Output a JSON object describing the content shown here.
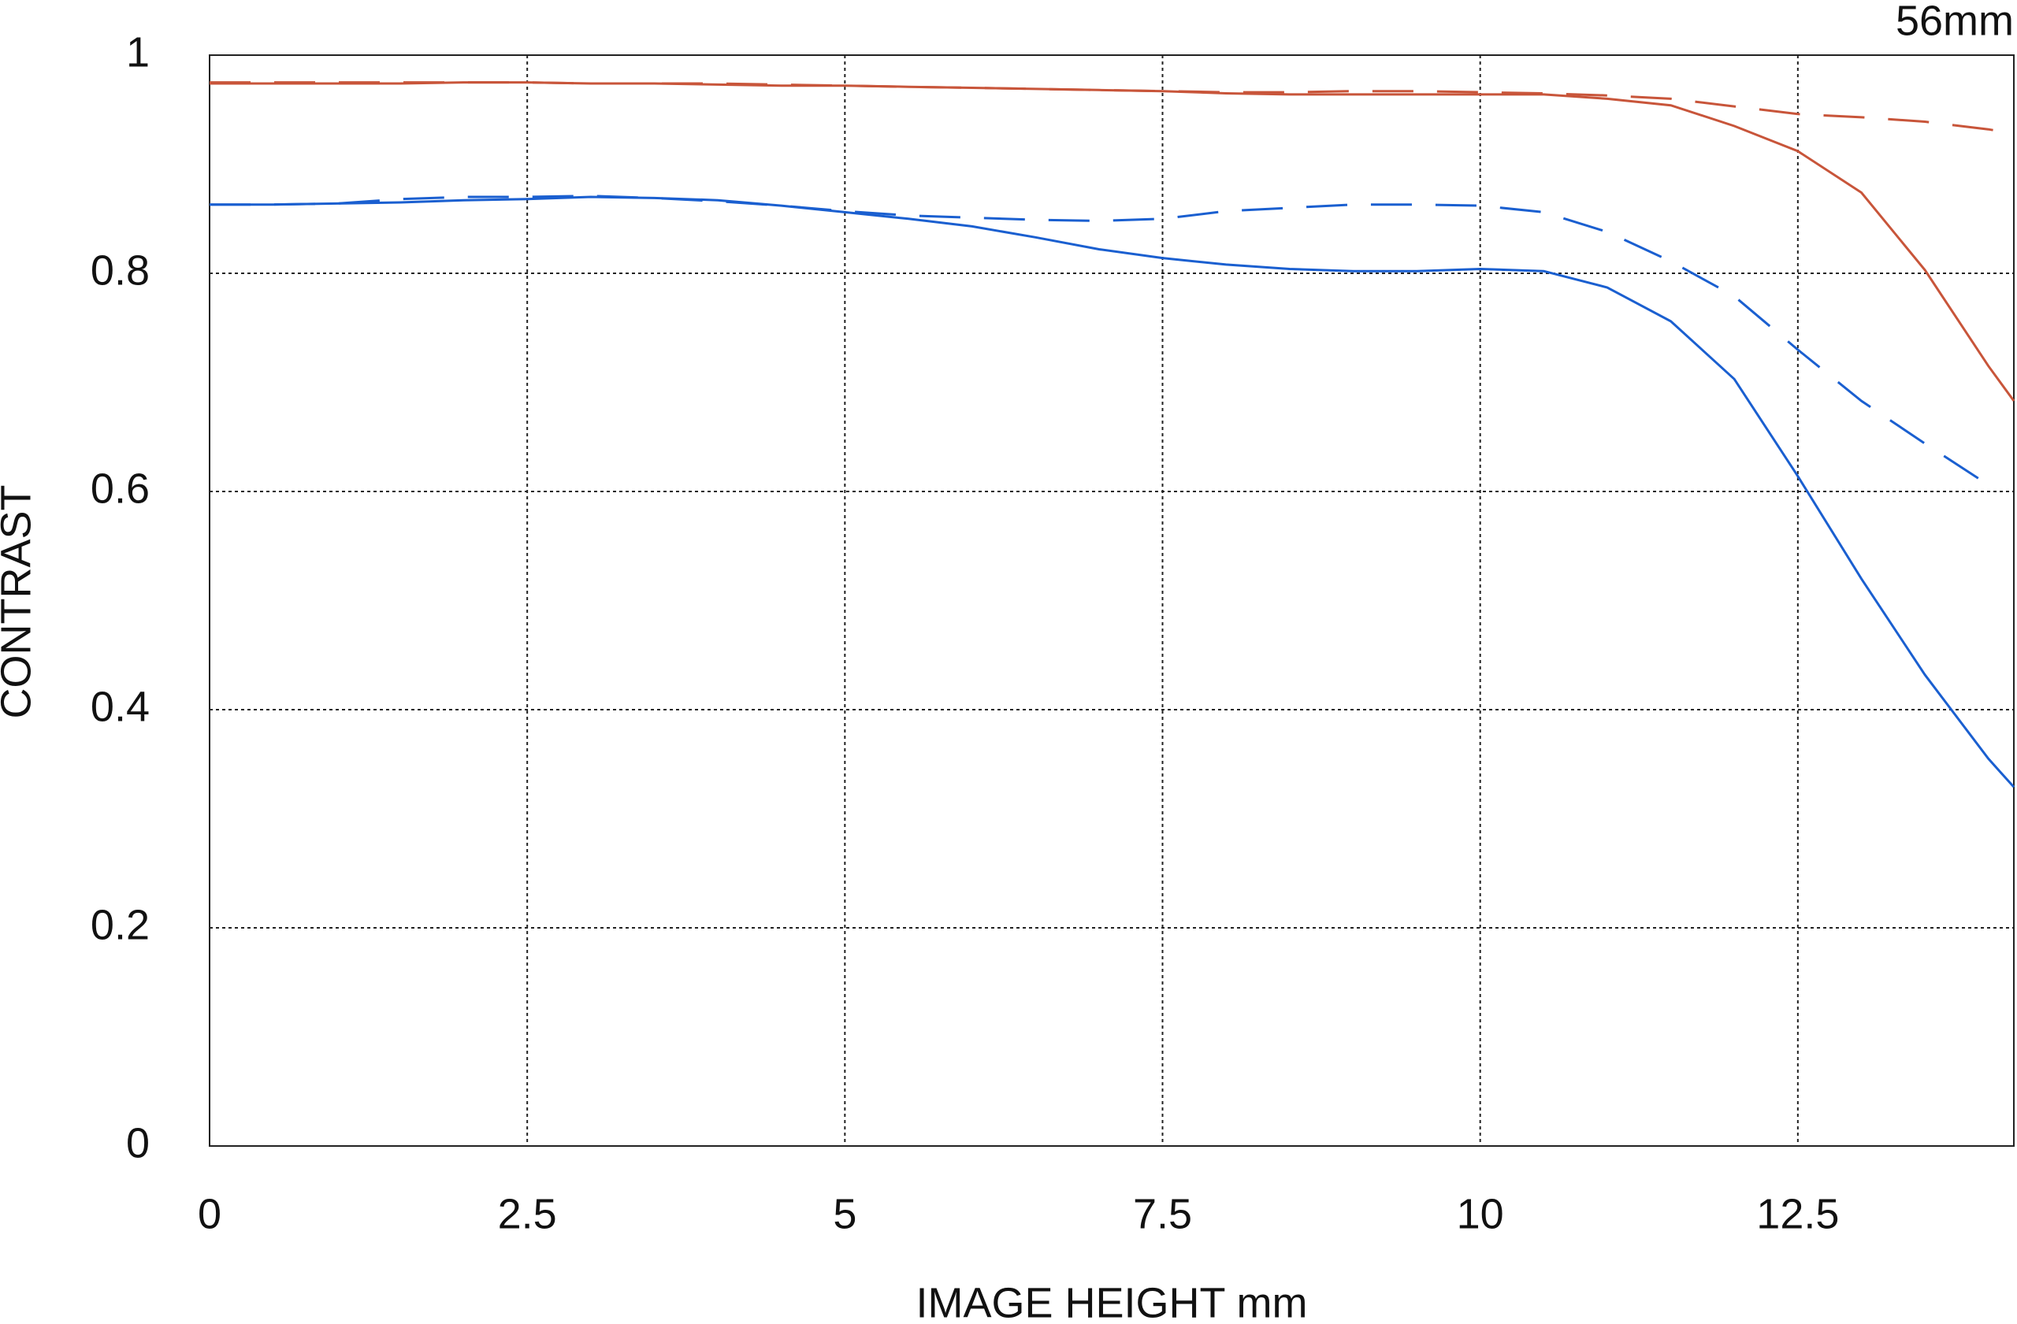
{
  "chart_data": {
    "type": "line",
    "title": "56mm",
    "x_label": "IMAGE HEIGHT  mm",
    "y_label": "CONTRAST",
    "x": [
      0,
      0.5,
      1,
      1.5,
      2,
      2.5,
      3,
      3.5,
      4,
      4.5,
      5,
      5.5,
      6,
      6.5,
      7,
      7.5,
      8,
      8.5,
      9,
      9.5,
      10,
      10.5,
      11,
      11.5,
      12,
      12.5,
      13,
      13.5,
      14,
      14.2
    ],
    "series": [
      {
        "color": "#c8553a",
        "linestyle": "solid",
        "values": [
          0.974,
          0.974,
          0.974,
          0.974,
          0.975,
          0.975,
          0.974,
          0.974,
          0.973,
          0.972,
          0.972,
          0.971,
          0.97,
          0.969,
          0.968,
          0.967,
          0.965,
          0.964,
          0.964,
          0.964,
          0.964,
          0.964,
          0.96,
          0.954,
          0.935,
          0.912,
          0.874,
          0.803,
          0.715,
          0.683
        ]
      },
      {
        "color": "#c8553a",
        "linestyle": "dashed",
        "values": [
          0.975,
          0.975,
          0.975,
          0.975,
          0.975,
          0.975,
          0.974,
          0.974,
          0.974,
          0.973,
          0.972,
          0.971,
          0.97,
          0.969,
          0.968,
          0.967,
          0.966,
          0.966,
          0.967,
          0.967,
          0.966,
          0.965,
          0.963,
          0.96,
          0.953,
          0.946,
          0.943,
          0.939,
          0.932,
          0.928
        ]
      },
      {
        "color": "#1a5fd0",
        "linestyle": "solid",
        "values": [
          0.863,
          0.863,
          0.864,
          0.865,
          0.867,
          0.868,
          0.87,
          0.869,
          0.867,
          0.862,
          0.856,
          0.85,
          0.843,
          0.833,
          0.822,
          0.814,
          0.808,
          0.804,
          0.802,
          0.802,
          0.804,
          0.802,
          0.787,
          0.756,
          0.703,
          0.614,
          0.52,
          0.432,
          0.355,
          0.329
        ]
      },
      {
        "color": "#1a5fd0",
        "linestyle": "dashed",
        "values": [
          0.863,
          0.863,
          0.864,
          0.868,
          0.87,
          0.87,
          0.871,
          0.869,
          0.866,
          0.862,
          0.857,
          0.853,
          0.851,
          0.849,
          0.848,
          0.85,
          0.857,
          0.86,
          0.863,
          0.863,
          0.862,
          0.856,
          0.838,
          0.811,
          0.779,
          0.73,
          0.683,
          0.644,
          0.606,
          null
        ]
      }
    ],
    "xlim": [
      0,
      14.2
    ],
    "ylim": [
      0,
      1
    ],
    "xticks": [
      0,
      2.5,
      5,
      7.5,
      10,
      12.5
    ],
    "yticks": [
      0,
      0.2,
      0.4,
      0.6,
      0.8,
      1
    ],
    "grid": true
  }
}
